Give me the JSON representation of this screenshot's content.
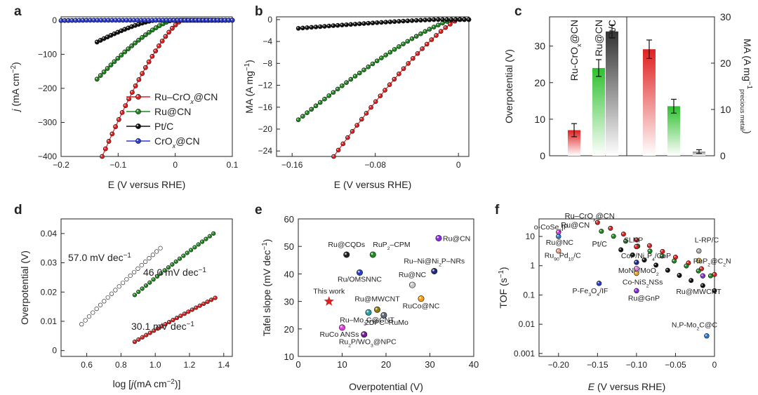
{
  "panel_letters": [
    "a",
    "b",
    "c",
    "d",
    "e",
    "f"
  ],
  "chart_data": [
    {
      "panel": "a",
      "type": "line",
      "xlabel": "E (V versus RHE)",
      "ylabel_parts": {
        "var": "j",
        "pre": "(mA cm",
        "sup": "−2",
        "post": ")"
      },
      "xlim": [
        -0.2,
        0.1
      ],
      "ylim": [
        -400,
        10
      ],
      "xticks": [
        -0.2,
        -0.1,
        0,
        0.1
      ],
      "xtick_labels": [
        "−0.2",
        "−0.1",
        "0",
        "0.1"
      ],
      "yticks": [
        0,
        -100,
        -200,
        -300,
        -400
      ],
      "ytick_labels": [
        "0",
        "−100",
        "−200",
        "−300",
        "−400"
      ],
      "legend": [
        "Ru–CrOx@CN",
        "Ru@CN",
        "Pt/C",
        "CrOx@CN"
      ],
      "series": [
        {
          "name": "Ru–CrOx@CN",
          "color": "#e02020",
          "x_start": -0.128,
          "x_end": 0.1,
          "onset": 0.012,
          "end_value": -400,
          "n": 40
        },
        {
          "name": "Ru@CN",
          "color": "#1e8a1e",
          "x_start": -0.137,
          "x_end": 0.1,
          "onset": -0.005,
          "end_value": -173,
          "n": 40
        },
        {
          "name": "Pt/C",
          "color": "#111111",
          "x_start": -0.137,
          "x_end": 0.1,
          "onset": -0.035,
          "end_value": -64,
          "n": 40
        },
        {
          "name": "CrOx@CN",
          "color": "#2a3bd6",
          "x_start": -0.2,
          "x_end": 0.1,
          "onset": -0.15,
          "end_value": -1,
          "n": 48
        }
      ]
    },
    {
      "panel": "b",
      "type": "line",
      "xlabel": "E (V versus RHE)",
      "ylabel_parts": {
        "var": "",
        "pre": "MA (A mg",
        "sup": "−1",
        "post": ")"
      },
      "xlim": [
        -0.175,
        0.01
      ],
      "ylim": [
        -25,
        0.5
      ],
      "xticks": [
        -0.16,
        -0.08,
        0
      ],
      "xtick_labels": [
        "−0.16",
        "−0.08",
        "0"
      ],
      "yticks": [
        0,
        -4,
        -8,
        -12,
        -16,
        -20,
        -24
      ],
      "ytick_labels": [
        "0",
        "−4",
        "−8",
        "−12",
        "−16",
        "−20",
        "−24"
      ],
      "series": [
        {
          "name": "Ru–CrOx@CN",
          "color": "#e02020",
          "x_start": -0.12,
          "x_end": 0.01,
          "onset": 0.0,
          "end_value": -25,
          "n": 30
        },
        {
          "name": "Ru@CN",
          "color": "#1e8a1e",
          "x_start": -0.154,
          "x_end": 0.01,
          "onset": -0.005,
          "end_value": -18.3,
          "n": 40
        },
        {
          "name": "Pt/C",
          "color": "#111111",
          "x_start": -0.154,
          "x_end": 0.01,
          "onset": -0.02,
          "end_value": -1.6,
          "n": 40
        }
      ]
    },
    {
      "panel": "c",
      "type": "bar",
      "ylabel_left": "Overpotential (V)",
      "ylabel_right_parts": {
        "pre": "MA (A mg",
        "sup": "−1",
        "sub": "precious metal",
        "post": ")"
      },
      "ylim_left": [
        0,
        38
      ],
      "ylim_right": [
        0,
        30
      ],
      "yticks_left": [
        0,
        10,
        20,
        30
      ],
      "yticks_right": [
        0,
        10,
        20,
        30
      ],
      "left_bars": [
        {
          "label": "Ru-CrOx@CN",
          "value": 7.0,
          "err": 1.8,
          "color": "#e02020"
        },
        {
          "label": "Ru@CN",
          "value": 24.0,
          "err": 2.3,
          "color": "#2ec02e"
        },
        {
          "label": "Pt/C",
          "value": 34.0,
          "err": 1.8,
          "color": "#333333"
        }
      ],
      "right_bars": [
        {
          "label": "Ru-CrOx@CN",
          "value": 23.0,
          "err": 2.0,
          "color": "#e02020"
        },
        {
          "label": "Ru@CN",
          "value": 10.7,
          "err": 1.5,
          "color": "#2ec02e"
        },
        {
          "label": "Pt/C",
          "value": 0.9,
          "err": 0.4,
          "color": "#888888"
        }
      ]
    },
    {
      "panel": "d",
      "type": "line",
      "xlabel_parts": {
        "pre": "log [",
        "var": "j",
        "mid": "(mA cm",
        "sup": "−2",
        "post": ")]"
      },
      "ylabel": "Overpotential (V)",
      "xlim": [
        0.45,
        1.45
      ],
      "ylim": [
        -0.002,
        0.045
      ],
      "xticks": [
        0.6,
        0.8,
        1.0,
        1.2,
        1.4
      ],
      "xtick_labels": [
        "0.6",
        "0.8",
        "1.0",
        "1.2",
        "1.4"
      ],
      "yticks": [
        0,
        0.01,
        0.02,
        0.03,
        0.04
      ],
      "ytick_labels": [
        "0",
        "0.01",
        "0.02",
        "0.03",
        "0.04"
      ],
      "series": [
        {
          "name": "57.0 mV dec−1",
          "color": "#111111",
          "x": [
            0.57,
            1.03
          ],
          "y": [
            0.009,
            0.035
          ],
          "n": 22
        },
        {
          "name": "46.0 mV dec−1",
          "color": "#1e8a1e",
          "x": [
            0.88,
            1.34
          ],
          "y": [
            0.019,
            0.04
          ],
          "n": 22
        },
        {
          "name": "30.1 mV dec−1",
          "color": "#e02020",
          "x": [
            0.88,
            1.35
          ],
          "y": [
            0.003,
            0.018
          ],
          "n": 22
        }
      ],
      "annotations": [
        {
          "pre": "57.0 mV dec",
          "sup": "−1",
          "color": "#222222"
        },
        {
          "pre": "46.0 mV dec",
          "sup": "−1",
          "color": "#1e8a1e"
        },
        {
          "pre": "30.1 mV dec",
          "sup": "−1",
          "color": "#e02020"
        }
      ]
    },
    {
      "panel": "e",
      "type": "scatter",
      "xlabel": "Overpotential (V)",
      "ylabel_parts": {
        "pre": "Tafel slope (mV dec",
        "sup": "−1",
        "post": ")"
      },
      "xlim": [
        0,
        40
      ],
      "ylim": [
        10,
        60
      ],
      "xticks": [
        0,
        10,
        20,
        30,
        40
      ],
      "yticks": [
        10,
        20,
        30,
        40,
        50,
        60
      ],
      "points": [
        {
          "label": "Ru@CQDs",
          "x": 11,
          "y": 47,
          "color": "#222222",
          "label_color": "#222222",
          "label_dx": 0,
          "label_dy": -11,
          "anchor": "middle"
        },
        {
          "label": "RuP2–CPM",
          "x": 17,
          "y": 47,
          "color": "#1e8a1e",
          "label_color": "#1e8a1e",
          "label_dx": 0,
          "label_dy": -11,
          "anchor": "start"
        },
        {
          "label": "Ru@CN",
          "x": 32,
          "y": 53,
          "color": "#8a2be2",
          "label_color": "#8a2be2",
          "label_dx": 6,
          "label_dy": 4,
          "anchor": "start"
        },
        {
          "label": "Ru–Ni@Ni2P–NRs",
          "x": 31,
          "y": 41,
          "color": "#1f2a8a",
          "label_color": "#1f2a8a",
          "label_dx": 0,
          "label_dy": -11,
          "anchor": "middle"
        },
        {
          "label": "Ru/OMSNNC",
          "x": 14,
          "y": 40.5,
          "color": "#2a3bd6",
          "label_color": "#2a3bd6",
          "label_dx": 0,
          "label_dy": 13,
          "anchor": "middle"
        },
        {
          "label": "Ru@NC",
          "x": 26,
          "y": 36,
          "color": "#c8c8c8",
          "label_color": "#b0b0b0",
          "label_dx": 0,
          "label_dy": -11,
          "anchor": "middle"
        },
        {
          "label": "This work",
          "x": 7,
          "y": 30,
          "color": "#e02020",
          "label_color": "#e02020",
          "label_dx": 0,
          "label_dy": -11,
          "anchor": "middle",
          "star": true
        },
        {
          "label": "Ru@MWCNT",
          "x": 18,
          "y": 27,
          "color": "#8a7a10",
          "label_color": "#444444",
          "label_dx": 0,
          "label_dy": -12,
          "anchor": "middle"
        },
        {
          "label": "RuCo@NC",
          "x": 28,
          "y": 31,
          "color": "#f39c12",
          "label_color": "#e67e22",
          "label_dx": 0,
          "label_dy": 14,
          "anchor": "middle"
        },
        {
          "label": "Ru–Mo2C@CNT",
          "x": 16,
          "y": 26,
          "color": "#20a0a0",
          "label_color": "#20a0a0",
          "label_dx": -2,
          "label_dy": 14,
          "anchor": "middle"
        },
        {
          "label": "2DPC–RuMo",
          "x": 19.5,
          "y": 25,
          "color": "#5a6a7a",
          "label_color": "#5a6a7a",
          "label_dx": 4,
          "label_dy": 14,
          "anchor": "middle"
        },
        {
          "label": "RuCo ANSs",
          "x": 10,
          "y": 20.5,
          "color": "#e040e0",
          "label_color": "#c020c0",
          "label_dx": -4,
          "label_dy": 13,
          "anchor": "middle"
        },
        {
          "label": "Ru2P/WO3@NPC",
          "x": 15,
          "y": 18,
          "color": "#7a1aa0",
          "label_color": "#7a1aa0",
          "label_dx": 5,
          "label_dy": 14,
          "anchor": "middle"
        }
      ]
    },
    {
      "panel": "f",
      "type": "scatter",
      "xlabel": "E (V versus RHE)",
      "ylabel": "TOF (s−1)",
      "xlim": [
        -0.225,
        0.0
      ],
      "ylim_log10": [
        -3.1,
        1.6
      ],
      "xticks": [
        -0.2,
        -0.15,
        -0.1,
        -0.05,
        0
      ],
      "xtick_labels": [
        "−0.20",
        "−0.15",
        "−0.10",
        "−0.05",
        "0"
      ],
      "yticks_log10": [
        -3,
        -2,
        -1,
        0,
        1
      ],
      "ytick_labels": [
        "0.001",
        "0.01",
        "0.1",
        "1",
        "10"
      ],
      "series_markers": [
        {
          "name": "Ru–CrOx@CN",
          "color": "#e02020",
          "x0": -0.15,
          "x1": 0.0,
          "y0": 30,
          "y1": 0.5,
          "n": 10
        },
        {
          "name": "Ru@CN",
          "color": "#1e8a1e",
          "x0": -0.145,
          "x1": -0.005,
          "y0": 15,
          "y1": 0.45,
          "n": 10
        },
        {
          "name": "Pt/C",
          "color": "#111111",
          "x0": -0.12,
          "x1": 0.0,
          "y0": 3.5,
          "y1": 0.14,
          "n": 9
        }
      ],
      "points": [
        {
          "label": "o-CoSe2|P",
          "x": -0.2,
          "y": 14,
          "color": "#e040e0",
          "label_color": "#e020e0",
          "dx": -35,
          "dy": -4
        },
        {
          "label": "Ru@NC",
          "x": -0.2,
          "y": 10,
          "color": "#2a7bd6",
          "label_color": "#2a7bd6",
          "dx": -18,
          "dy": 12
        },
        {
          "label": "Ru90Pd10/C",
          "x": -0.2,
          "y": 3.2,
          "color": "#f39c8a",
          "label_color": "#e08070",
          "dx": -20,
          "dy": 10
        },
        {
          "label": "SLNP",
          "x": -0.1,
          "y": 4.5,
          "color": "#e02020",
          "label_color": "#e02020",
          "dx": -18,
          "dy": -6
        },
        {
          "label": "CoP/Ni5P4/CoP",
          "x": -0.1,
          "y": 1.3,
          "color": "#1f2a8a",
          "label_color": "#1f2a8a",
          "dx": -22,
          "dy": -6
        },
        {
          "label": "MoNi4/MoO2",
          "x": -0.1,
          "y": 0.8,
          "color": "#e080e0",
          "label_color": "#e080e0",
          "dx": -26,
          "dy": 6
        },
        {
          "label": "Co-NiS2NSs",
          "x": -0.1,
          "y": 0.55,
          "color": "#f0a020",
          "label_color": "#e09010",
          "dx": -20,
          "dy": 16
        },
        {
          "label": "Ru@MWCNT",
          "x": -0.015,
          "y": 0.45,
          "color": "#8a2be2",
          "label_color": "#8a2be2",
          "dx": -38,
          "dy": 26
        },
        {
          "label": "P-Fe3O4/IF",
          "x": -0.148,
          "y": 0.25,
          "color": "#2a3bd6",
          "label_color": "#2a3bd6",
          "dx": -38,
          "dy": 14
        },
        {
          "label": "Ru@GnP",
          "x": -0.1,
          "y": 0.14,
          "color": "#8a2be2",
          "label_color": "#8a2be2",
          "dx": -12,
          "dy": 14
        },
        {
          "label": "L-RP/C",
          "x": -0.02,
          "y": 3.2,
          "color": "#aaaaaa",
          "label_color": "#999999",
          "dx": -6,
          "dy": -12
        },
        {
          "label": "RuP2@C2N",
          "x": -0.02,
          "y": 1.5,
          "color": "#d4b020",
          "label_color": "#8a7a10",
          "dx": -8,
          "dy": 4
        },
        {
          "label": "N,P-Mo2C@C",
          "x": -0.01,
          "y": 0.004,
          "color": "#2a7bd6",
          "label_color": "#2a7bd6",
          "dx": -50,
          "dy": -12
        }
      ],
      "series_labels": [
        {
          "label": "Ru–CrOx@CN",
          "color": "#e02020",
          "anchor_x": -0.165,
          "anchor_y": 33
        },
        {
          "label": "Ru@CN",
          "color": "#1e8a1e",
          "anchor_x": -0.17,
          "anchor_y": 16
        },
        {
          "label": "Pt/C",
          "color": "#222222",
          "anchor_x": -0.13,
          "anchor_y": 3.6
        }
      ]
    }
  ]
}
